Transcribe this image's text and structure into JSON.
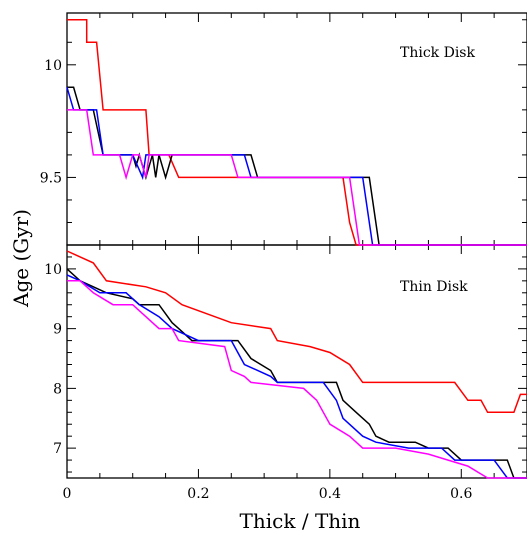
{
  "chart_data": {
    "type": "line",
    "xlabel": "Thick / Thin",
    "ylabel": "Age (Gyr)",
    "colors": [
      "#ff0000",
      "#000000",
      "#0000ff",
      "#ff00ff"
    ],
    "panels": [
      {
        "id": "top",
        "label": "Thick Disk",
        "xlim": [
          0,
          0.7
        ],
        "ylim": [
          9.2,
          10.23
        ],
        "yticks": [
          10,
          9.5
        ],
        "yticklabels": [
          "10",
          "9.5"
        ],
        "series": [
          {
            "color": "#ff0000",
            "points": [
              [
                0,
                10.2
              ],
              [
                0.03,
                10.2
              ],
              [
                0.03,
                10.1
              ],
              [
                0.045,
                10.1
              ],
              [
                0.055,
                9.8
              ],
              [
                0.12,
                9.8
              ],
              [
                0.125,
                9.6
              ],
              [
                0.155,
                9.6
              ],
              [
                0.17,
                9.5
              ],
              [
                0.42,
                9.5
              ],
              [
                0.43,
                9.3
              ],
              [
                0.44,
                9.2
              ],
              [
                0.7,
                9.2
              ]
            ]
          },
          {
            "color": "#000000",
            "points": [
              [
                0,
                9.9
              ],
              [
                0.01,
                9.9
              ],
              [
                0.02,
                9.8
              ],
              [
                0.04,
                9.8
              ],
              [
                0.055,
                9.6
              ],
              [
                0.1,
                9.6
              ],
              [
                0.105,
                9.55
              ],
              [
                0.11,
                9.6
              ],
              [
                0.12,
                9.5
              ],
              [
                0.13,
                9.6
              ],
              [
                0.135,
                9.5
              ],
              [
                0.14,
                9.6
              ],
              [
                0.15,
                9.5
              ],
              [
                0.16,
                9.6
              ],
              [
                0.28,
                9.6
              ],
              [
                0.29,
                9.5
              ],
              [
                0.46,
                9.5
              ],
              [
                0.475,
                9.2
              ],
              [
                0.7,
                9.2
              ]
            ]
          },
          {
            "color": "#0000ff",
            "points": [
              [
                0,
                9.9
              ],
              [
                0.01,
                9.8
              ],
              [
                0.045,
                9.8
              ],
              [
                0.055,
                9.6
              ],
              [
                0.1,
                9.6
              ],
              [
                0.115,
                9.5
              ],
              [
                0.12,
                9.6
              ],
              [
                0.27,
                9.6
              ],
              [
                0.28,
                9.5
              ],
              [
                0.45,
                9.5
              ],
              [
                0.465,
                9.2
              ],
              [
                0.7,
                9.2
              ]
            ]
          },
          {
            "color": "#ff00ff",
            "points": [
              [
                0,
                9.8
              ],
              [
                0.03,
                9.8
              ],
              [
                0.04,
                9.6
              ],
              [
                0.08,
                9.6
              ],
              [
                0.09,
                9.5
              ],
              [
                0.1,
                9.6
              ],
              [
                0.11,
                9.6
              ],
              [
                0.12,
                9.5
              ],
              [
                0.125,
                9.6
              ],
              [
                0.25,
                9.6
              ],
              [
                0.26,
                9.5
              ],
              [
                0.43,
                9.5
              ],
              [
                0.445,
                9.2
              ],
              [
                0.7,
                9.2
              ]
            ]
          }
        ]
      },
      {
        "id": "bottom",
        "label": "Thin Disk",
        "xlim": [
          0,
          0.7
        ],
        "ylim": [
          6.5,
          10.4
        ],
        "yticks": [
          10,
          9,
          8,
          7
        ],
        "yticklabels": [
          "10",
          "9",
          "8",
          "7"
        ],
        "series": [
          {
            "color": "#ff0000",
            "points": [
              [
                0,
                10.3
              ],
              [
                0.02,
                10.2
              ],
              [
                0.04,
                10.1
              ],
              [
                0.06,
                9.8
              ],
              [
                0.12,
                9.7
              ],
              [
                0.15,
                9.6
              ],
              [
                0.175,
                9.4
              ],
              [
                0.25,
                9.1
              ],
              [
                0.31,
                9.0
              ],
              [
                0.32,
                8.8
              ],
              [
                0.37,
                8.7
              ],
              [
                0.4,
                8.6
              ],
              [
                0.43,
                8.4
              ],
              [
                0.45,
                8.1
              ],
              [
                0.59,
                8.1
              ],
              [
                0.61,
                7.8
              ],
              [
                0.63,
                7.8
              ],
              [
                0.64,
                7.6
              ],
              [
                0.68,
                7.6
              ],
              [
                0.69,
                7.9
              ],
              [
                0.7,
                7.9
              ]
            ]
          },
          {
            "color": "#000000",
            "points": [
              [
                0,
                10.0
              ],
              [
                0.02,
                9.8
              ],
              [
                0.04,
                9.7
              ],
              [
                0.06,
                9.6
              ],
              [
                0.1,
                9.5
              ],
              [
                0.11,
                9.4
              ],
              [
                0.14,
                9.4
              ],
              [
                0.16,
                9.1
              ],
              [
                0.17,
                9.0
              ],
              [
                0.19,
                8.8
              ],
              [
                0.26,
                8.8
              ],
              [
                0.28,
                8.5
              ],
              [
                0.31,
                8.3
              ],
              [
                0.32,
                8.1
              ],
              [
                0.41,
                8.1
              ],
              [
                0.42,
                7.8
              ],
              [
                0.44,
                7.6
              ],
              [
                0.46,
                7.4
              ],
              [
                0.47,
                7.2
              ],
              [
                0.49,
                7.1
              ],
              [
                0.53,
                7.1
              ],
              [
                0.55,
                7.0
              ],
              [
                0.58,
                7.0
              ],
              [
                0.6,
                6.8
              ],
              [
                0.67,
                6.8
              ],
              [
                0.68,
                6.5
              ],
              [
                0.7,
                6.5
              ]
            ]
          },
          {
            "color": "#0000ff",
            "points": [
              [
                0,
                9.9
              ],
              [
                0.02,
                9.8
              ],
              [
                0.05,
                9.6
              ],
              [
                0.09,
                9.6
              ],
              [
                0.11,
                9.4
              ],
              [
                0.14,
                9.2
              ],
              [
                0.16,
                9.0
              ],
              [
                0.18,
                8.9
              ],
              [
                0.2,
                8.8
              ],
              [
                0.25,
                8.8
              ],
              [
                0.27,
                8.4
              ],
              [
                0.31,
                8.2
              ],
              [
                0.32,
                8.1
              ],
              [
                0.39,
                8.1
              ],
              [
                0.41,
                7.8
              ],
              [
                0.42,
                7.5
              ],
              [
                0.45,
                7.2
              ],
              [
                0.47,
                7.1
              ],
              [
                0.52,
                7.0
              ],
              [
                0.57,
                7.0
              ],
              [
                0.59,
                6.8
              ],
              [
                0.65,
                6.8
              ],
              [
                0.67,
                6.5
              ],
              [
                0.7,
                6.5
              ]
            ]
          },
          {
            "color": "#ff00ff",
            "points": [
              [
                0,
                9.8
              ],
              [
                0.02,
                9.8
              ],
              [
                0.04,
                9.6
              ],
              [
                0.07,
                9.4
              ],
              [
                0.1,
                9.4
              ],
              [
                0.12,
                9.2
              ],
              [
                0.14,
                9.0
              ],
              [
                0.16,
                9.0
              ],
              [
                0.17,
                8.8
              ],
              [
                0.24,
                8.7
              ],
              [
                0.25,
                8.3
              ],
              [
                0.27,
                8.2
              ],
              [
                0.28,
                8.1
              ],
              [
                0.36,
                8.0
              ],
              [
                0.38,
                7.8
              ],
              [
                0.4,
                7.4
              ],
              [
                0.43,
                7.2
              ],
              [
                0.45,
                7.0
              ],
              [
                0.5,
                7.0
              ],
              [
                0.55,
                6.9
              ],
              [
                0.58,
                6.8
              ],
              [
                0.61,
                6.7
              ],
              [
                0.64,
                6.5
              ],
              [
                0.7,
                6.5
              ]
            ]
          }
        ]
      }
    ],
    "xticks": [
      0,
      0.2,
      0.4,
      0.6
    ],
    "xticklabels": [
      "0",
      "0.2",
      "0.4",
      "0.6"
    ],
    "xminor_step": 0.05,
    "grid": false,
    "legend": "none"
  }
}
